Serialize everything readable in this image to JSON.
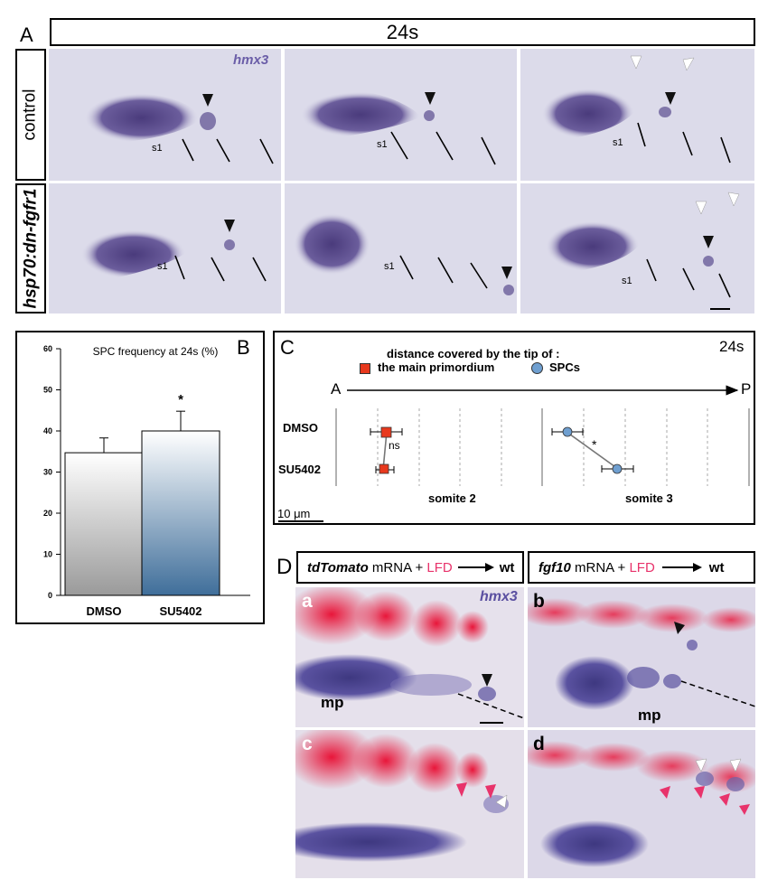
{
  "panelA": {
    "letter": "A",
    "stage": "24s",
    "gene": "hmx3",
    "rows": [
      {
        "label": "control",
        "italic": false
      },
      {
        "label": "hsp70:dn-fgfr1",
        "italic": true
      }
    ],
    "somite_label": "s1"
  },
  "panelB": {
    "letter": "B",
    "title": "SPC frequency at 24s (%)",
    "significance": "*"
  },
  "panelC": {
    "letter": "C",
    "stage": "24s",
    "heading": "distance covered by the tip of :",
    "legend_primordium": "the main primordium",
    "legend_spcs": "SPCs",
    "axis_start": "A",
    "axis_end": "P",
    "row_labels": [
      "DMSO",
      "SU5402"
    ],
    "ns_label": "ns",
    "star_label": "*",
    "somite_labels": [
      "somite 2",
      "somite 3"
    ],
    "scale_label": "10 μm",
    "colors": {
      "primordium": "#e8391d",
      "spc": "#6f9fd0"
    }
  },
  "panelD": {
    "letter": "D",
    "left_header": {
      "gene": "tdTomato",
      "rest": " mRNA + ",
      "lfd": "LFD",
      "wt": "wt"
    },
    "right_header": {
      "gene": "fgf10",
      "rest": " mRNA + ",
      "lfd": "LFD",
      "wt": "wt"
    },
    "gene": "hmx3",
    "sub_letters": [
      "a",
      "b",
      "c",
      "d"
    ],
    "mp_label": "mp",
    "colors": {
      "lfd": "#e8336b",
      "hmx3": "#5a4fa0"
    }
  },
  "chart_data": {
    "type": "bar",
    "title": "SPC frequency at 24s (%)",
    "categories": [
      "DMSO",
      "SU5402"
    ],
    "values": [
      34.7,
      40.0
    ],
    "errors": [
      3.6,
      4.8
    ],
    "ylim": [
      0,
      60
    ],
    "yticks": [
      0,
      10,
      20,
      30,
      40,
      50,
      60
    ],
    "significance": [
      "",
      "*"
    ],
    "colors": [
      "#9a9a9a",
      "#3f6e9a"
    ],
    "grid": false
  }
}
